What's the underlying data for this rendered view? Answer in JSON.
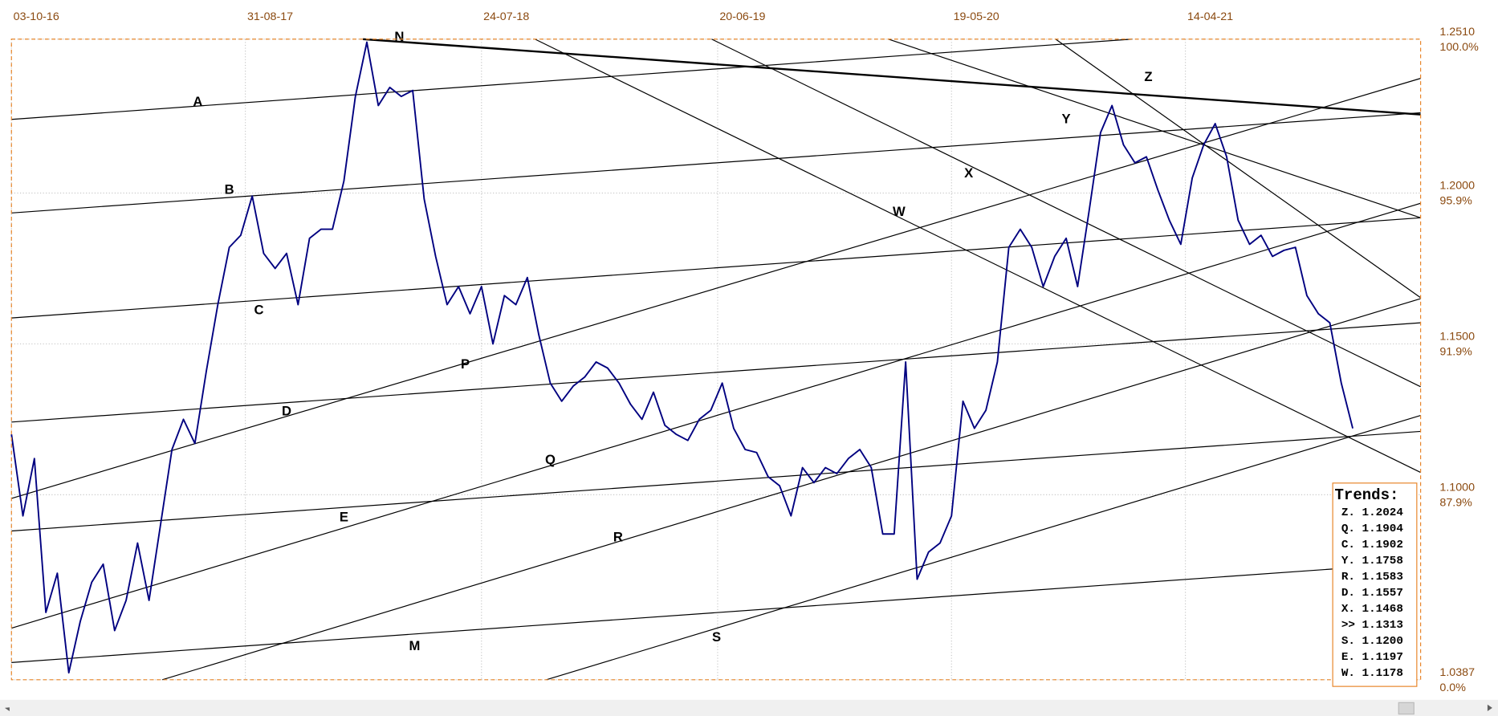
{
  "chart_data": {
    "type": "line",
    "xticks": [
      {
        "value": 0,
        "label": "03-10-16"
      },
      {
        "value": 102,
        "label": "31-08-17"
      },
      {
        "value": 205,
        "label": "24-07-18"
      },
      {
        "value": 308,
        "label": "20-06-19"
      },
      {
        "value": 410,
        "label": "19-05-20"
      },
      {
        "value": 512,
        "label": "14-04-21"
      }
    ],
    "xlim": [
      0,
      614.6
    ],
    "ylim": [
      1.0387,
      1.251
    ],
    "yticks": [
      {
        "value": 1.251,
        "label": "1.2510"
      },
      {
        "value": 1.2,
        "label": "1.2000"
      },
      {
        "value": 1.15,
        "label": "1.1500"
      },
      {
        "value": 1.1,
        "label": "1.1000"
      },
      {
        "value": 1.0387,
        "label": "1.0387"
      }
    ],
    "ytick_pct": [
      "100.0%",
      "95.9%",
      "91.9%",
      "87.9%",
      "0.0%"
    ],
    "grid": true,
    "x": [
      0,
      5,
      10,
      15,
      20,
      25,
      30,
      35,
      40,
      45,
      50,
      55,
      60,
      65,
      70,
      75,
      80,
      85,
      90,
      95,
      100,
      105,
      110,
      115,
      120,
      125,
      130,
      135,
      140,
      145,
      150,
      155,
      160,
      165,
      170,
      175,
      180,
      185,
      190,
      195,
      200,
      205,
      210,
      215,
      220,
      225,
      230,
      235,
      240,
      245,
      250,
      255,
      260,
      265,
      270,
      275,
      280,
      285,
      290,
      295,
      300,
      305,
      310,
      315,
      320,
      325,
      330,
      335,
      340,
      345,
      350,
      355,
      360,
      365,
      370,
      375,
      380,
      385,
      390,
      395,
      400,
      405,
      410,
      415,
      420,
      425,
      430,
      435,
      440,
      445,
      450,
      455,
      460,
      465,
      470,
      475,
      480,
      485,
      490,
      495,
      500,
      505,
      510,
      515,
      520,
      525,
      530,
      535,
      540,
      545,
      550,
      555,
      560,
      565,
      570,
      575,
      580,
      585
    ],
    "series": [
      {
        "color": "#000080",
        "values": [
          1.12,
          1.093,
          1.112,
          1.061,
          1.074,
          1.041,
          1.058,
          1.071,
          1.077,
          1.055,
          1.065,
          1.084,
          1.065,
          1.09,
          1.115,
          1.125,
          1.117,
          1.141,
          1.163,
          1.182,
          1.186,
          1.199,
          1.18,
          1.175,
          1.18,
          1.163,
          1.185,
          1.188,
          1.188,
          1.204,
          1.232,
          1.25,
          1.229,
          1.235,
          1.232,
          1.234,
          1.198,
          1.179,
          1.163,
          1.169,
          1.16,
          1.169,
          1.15,
          1.166,
          1.163,
          1.172,
          1.153,
          1.137,
          1.131,
          1.136,
          1.139,
          1.144,
          1.142,
          1.137,
          1.13,
          1.125,
          1.134,
          1.123,
          1.12,
          1.118,
          1.125,
          1.128,
          1.137,
          1.122,
          1.115,
          1.114,
          1.106,
          1.103,
          1.093,
          1.109,
          1.104,
          1.109,
          1.107,
          1.112,
          1.115,
          1.109,
          1.087,
          1.087,
          1.144,
          1.072,
          1.081,
          1.084,
          1.093,
          1.131,
          1.122,
          1.128,
          1.144,
          1.182,
          1.188,
          1.182,
          1.169,
          1.179,
          1.185,
          1.169,
          1.194,
          1.22,
          1.229,
          1.216,
          1.21,
          1.212,
          1.201,
          1.191,
          1.183,
          1.205,
          1.216,
          1.223,
          1.212,
          1.191,
          1.183,
          1.186,
          1.179,
          1.181,
          1.182,
          1.166,
          1.16,
          1.157,
          1.137,
          1.122
        ]
      }
    ],
    "trendlines": [
      {
        "label": "A",
        "points": [
          [
            0,
            1.2244
          ],
          [
            488.8,
            1.251
          ]
        ]
      },
      {
        "label": "N",
        "points": [
          [
            153.3,
            1.251
          ],
          [
            614.6,
            1.226
          ]
        ],
        "width": 2
      },
      {
        "label": "B",
        "points": [
          [
            0,
            1.1934
          ],
          [
            614.6,
            1.2266
          ]
        ]
      },
      {
        "label": "C",
        "points": [
          [
            0,
            1.1586
          ],
          [
            614.6,
            1.1918
          ]
        ]
      },
      {
        "label": "D",
        "points": [
          [
            0,
            1.1241
          ],
          [
            614.6,
            1.157
          ]
        ]
      },
      {
        "label": "E",
        "points": [
          [
            0,
            1.088
          ],
          [
            614.6,
            1.121
          ]
        ]
      },
      {
        "label": "M",
        "points": [
          [
            0,
            1.0444
          ],
          [
            576.3,
            1.0754
          ]
        ]
      },
      {
        "label": "P",
        "points": [
          [
            0,
            1.0988
          ],
          [
            614.6,
            1.238
          ]
        ]
      },
      {
        "label": "Q",
        "points": [
          [
            0,
            1.0558
          ],
          [
            614.6,
            1.1966
          ]
        ]
      },
      {
        "label": "R",
        "points": [
          [
            65.8,
            1.0387
          ],
          [
            614.6,
            1.165
          ]
        ]
      },
      {
        "label": "S",
        "points": [
          [
            233.3,
            1.0387
          ],
          [
            614.6,
            1.1263
          ]
        ]
      },
      {
        "label": "W",
        "points": [
          [
            228.3,
            1.251
          ],
          [
            614.6,
            1.1074
          ]
        ]
      },
      {
        "label": "X",
        "points": [
          [
            305.4,
            1.251
          ],
          [
            614.6,
            1.1358
          ]
        ]
      },
      {
        "label": "Y",
        "points": [
          [
            382.5,
            1.251
          ],
          [
            614.6,
            1.1918
          ]
        ]
      },
      {
        "label": "Z",
        "points": [
          [
            455.4,
            1.251
          ],
          [
            614.6,
            1.1653
          ]
        ]
      }
    ],
    "trends_title": "Trends:",
    "trends": [
      "Z. 1.2024",
      "Q. 1.1904",
      "C. 1.1902",
      "Y. 1.1758",
      "R. 1.1583",
      "D. 1.1557",
      "X. 1.1468",
      ">> 1.1313",
      "S. 1.1200",
      "E. 1.1197",
      "W. 1.1178"
    ]
  }
}
